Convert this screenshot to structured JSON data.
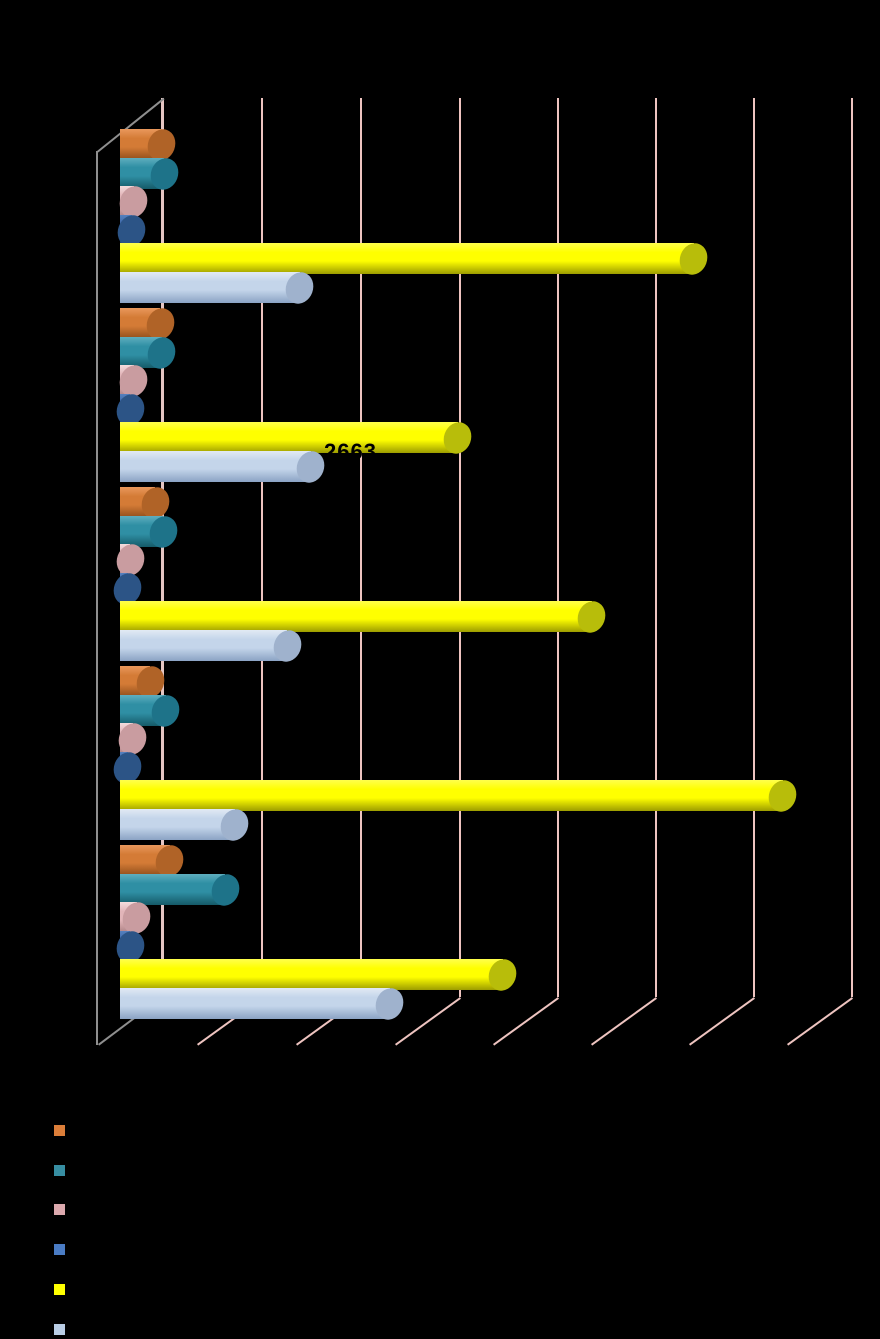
{
  "chart": {
    "type": "bar",
    "subtype": "3d-cylinder-horizontal",
    "background_color": "#000000",
    "gridline_color": "#EEC4C0",
    "wall_edge_color": "#8F8F8F",
    "axis_edge_color": "#E5C6C3",
    "title_visible": false,
    "series_names_visible": false,
    "category_labels_visible": false,
    "categories": [
      "",
      "",
      "",
      "",
      ""
    ],
    "series": [
      {
        "color_name": "orange",
        "color": "#D47B36",
        "color_light": "#E9985C",
        "color_dark": "#8F4D1B",
        "cap_color": "#B06327",
        "values": [
          585,
          560,
          490,
          420,
          695
        ]
      },
      {
        "color_name": "teal",
        "color": "#2F8FA4",
        "color_light": "#5FAEBE",
        "color_dark": "#155A68",
        "cap_color": "#1E7389",
        "values": [
          615,
          585,
          600,
          640,
          1465
        ]
      },
      {
        "color_name": "pink",
        "color": "#E2B5B9",
        "color_light": "#F4DCDD",
        "color_dark": "#AD8184",
        "cap_color": "#C99CA0",
        "values": [
          195,
          195,
          140,
          180,
          235
        ]
      },
      {
        "color_name": "dark-blue",
        "color": "#3B67A8",
        "color_light": "#5580BE",
        "color_dark": "#1E3C63",
        "cap_color": "#2C5486",
        "values": [
          165,
          140,
          110,
          110,
          140
        ]
      },
      {
        "color_name": "yellow",
        "color": "#FFFF00",
        "color_light": "#FFFF4D",
        "color_dark": "#9C9C00",
        "cap_color": "#B8BD0A",
        "values": [
          8000,
          4710,
          6580,
          9240,
          5340
        ]
      },
      {
        "color_name": "light-blue",
        "color": "#C4D5EA",
        "color_light": "#E2EAF4",
        "color_dark": "#8BA3C4",
        "cap_color": "#9FB2CD",
        "values": [
          2510,
          2663,
          2330,
          1600,
          3765
        ]
      }
    ],
    "values_are_pixel_estimates": true,
    "visible_data_labels": [
      {
        "series_color_name": "light-blue",
        "category_index": 1,
        "text": "2663"
      }
    ],
    "x_axis": {
      "tick_labels_visible": false,
      "gridline_count": 7,
      "estimated_interval_units": 1375,
      "estimated_range": [
        0,
        9650
      ]
    }
  },
  "legend": {
    "position": "bottom-left",
    "labels_visible": false,
    "items": [
      {
        "color_name": "orange",
        "color": "#DC7E39"
      },
      {
        "color_name": "teal",
        "color": "#378EA2"
      },
      {
        "color_name": "pink",
        "color": "#DCA9AE"
      },
      {
        "color_name": "dark-blue",
        "color": "#4A7CC4"
      },
      {
        "color_name": "yellow",
        "color": "#FFFF00"
      },
      {
        "color_name": "light-blue",
        "color": "#B9CDE5"
      }
    ]
  }
}
